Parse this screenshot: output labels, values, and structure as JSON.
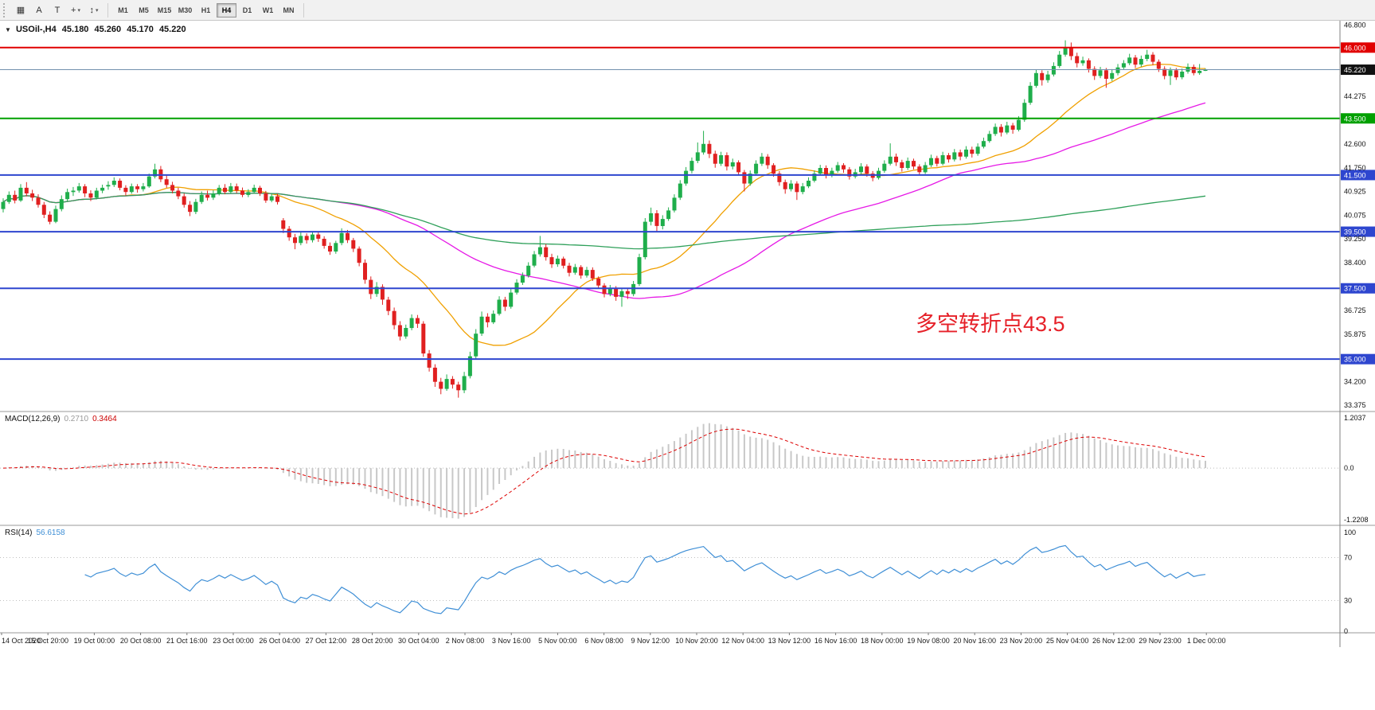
{
  "toolbar": {
    "caret_glyph": "▾",
    "left_icons": [
      {
        "name": "charts-icon",
        "glyph": "▦"
      },
      {
        "name": "annotate-a-icon",
        "glyph": "A"
      },
      {
        "name": "text-tool-icon",
        "glyph": "T"
      },
      {
        "name": "crosshair-tool-icon",
        "glyph": "+"
      },
      {
        "name": "indicators-icon",
        "glyph": "↕"
      }
    ],
    "timeframes": [
      "M1",
      "M5",
      "M15",
      "M30",
      "H1",
      "H4",
      "D1",
      "W1",
      "MN"
    ],
    "active_timeframe": "H4"
  },
  "header": {
    "arrow_glyph": "▼",
    "symbol_period": "USOil-,H4",
    "open": "45.180",
    "high": "45.260",
    "low": "45.170",
    "close": "45.220"
  },
  "panels": {
    "macd": {
      "label": "MACD(12,26,9)",
      "value_main": "0.2710",
      "value_signal": "0.3464",
      "axis": [
        "1.2037",
        "0.0",
        "-1.2208"
      ]
    },
    "rsi": {
      "label": "RSI(14)",
      "value": "56.6158",
      "levels": [
        100,
        70,
        30,
        0
      ],
      "guide_levels": [
        70,
        30
      ]
    }
  },
  "colors": {
    "background": "#ffffff",
    "candle_up": "#1fae4b",
    "candle_down": "#e02020",
    "macd_hist": "#c8c8c8",
    "macd_signal": "#dd0000",
    "rsi_line": "#3f8fd6",
    "pane_border": "#9a9a9a",
    "axis_text": "#111111"
  },
  "chart_data": {
    "type": "candlestick",
    "title": "USOil-,H4",
    "symbol": "USOil-",
    "timeframe": "H4",
    "annotation": {
      "text": "多空转折点43.5",
      "color": "#e62129"
    },
    "y_axis": {
      "range": [
        33.15,
        46.95
      ],
      "ticks": [
        "46.800",
        "44.275",
        "42.600",
        "41.750",
        "40.925",
        "40.075",
        "39.250",
        "38.400",
        "36.725",
        "35.875",
        "34.200",
        "33.375"
      ]
    },
    "x_axis": {
      "labels": [
        "14 Oct 2020",
        "15 Oct 20:00",
        "19 Oct 00:00",
        "20 Oct 08:00",
        "21 Oct 16:00",
        "23 Oct 00:00",
        "26 Oct 04:00",
        "27 Oct 12:00",
        "28 Oct 20:00",
        "30 Oct 04:00",
        "2 Nov 08:00",
        "3 Nov 16:00",
        "5 Nov 00:00",
        "6 Nov 08:00",
        "9 Nov 12:00",
        "10 Nov 20:00",
        "12 Nov 04:00",
        "13 Nov 12:00",
        "16 Nov 16:00",
        "18 Nov 00:00",
        "19 Nov 08:00",
        "20 Nov 16:00",
        "23 Nov 20:00",
        "25 Nov 04:00",
        "26 Nov 12:00",
        "29 Nov 23:00",
        "1 Dec 00:00"
      ]
    },
    "h_lines": [
      {
        "label": "46.000",
        "price": 46.0,
        "color": "#e10000",
        "width": 2
      },
      {
        "label": "45.220",
        "price": 45.22,
        "color": "#7391ad",
        "badge_color": "#111111",
        "width": 1,
        "role": "current-price"
      },
      {
        "label": "43.500",
        "price": 43.5,
        "color": "#00a000",
        "width": 2
      },
      {
        "label": "41.500",
        "price": 41.5,
        "color": "#2e46cf",
        "width": 2
      },
      {
        "label": "39.500",
        "price": 39.5,
        "color": "#2e46cf",
        "width": 2
      },
      {
        "label": "37.500",
        "price": 37.5,
        "color": "#2e46cf",
        "width": 2
      },
      {
        "label": "35.000",
        "price": 35.0,
        "color": "#2e46cf",
        "width": 2
      }
    ],
    "moving_averages": [
      {
        "name": "ma-fast",
        "period": 20,
        "color": "#f0a000"
      },
      {
        "name": "ma-mid",
        "period": 55,
        "color": "#e619e6"
      },
      {
        "name": "ma-slow",
        "period": 160,
        "color": "#2fa05a"
      }
    ],
    "candles": [
      [
        40.3,
        40.68,
        40.18,
        40.55
      ],
      [
        40.55,
        40.92,
        40.48,
        40.8
      ],
      [
        40.8,
        40.95,
        40.5,
        40.6
      ],
      [
        40.6,
        41.18,
        40.55,
        41.05
      ],
      [
        41.05,
        41.25,
        40.75,
        40.85
      ],
      [
        40.85,
        40.98,
        40.58,
        40.7
      ],
      [
        40.7,
        40.82,
        40.35,
        40.45
      ],
      [
        40.45,
        40.55,
        39.98,
        40.1
      ],
      [
        40.1,
        40.22,
        39.76,
        39.85
      ],
      [
        39.85,
        40.42,
        39.8,
        40.3
      ],
      [
        40.3,
        40.78,
        40.22,
        40.65
      ],
      [
        40.65,
        41.02,
        40.58,
        40.9
      ],
      [
        40.9,
        41.08,
        40.76,
        40.95
      ],
      [
        40.95,
        41.22,
        40.88,
        41.1
      ],
      [
        41.1,
        41.18,
        40.72,
        40.85
      ],
      [
        40.85,
        40.96,
        40.58,
        40.7
      ],
      [
        40.7,
        41.05,
        40.64,
        40.95
      ],
      [
        40.95,
        41.16,
        40.86,
        41.05
      ],
      [
        41.1,
        41.28,
        40.98,
        41.15
      ],
      [
        41.15,
        41.42,
        41.08,
        41.3
      ],
      [
        41.3,
        41.38,
        40.96,
        41.05
      ],
      [
        41.05,
        41.14,
        40.78,
        40.9
      ],
      [
        40.9,
        41.2,
        40.84,
        41.1
      ],
      [
        41.1,
        41.18,
        40.88,
        41.0
      ],
      [
        41.0,
        41.22,
        40.92,
        41.1
      ],
      [
        41.1,
        41.55,
        41.05,
        41.45
      ],
      [
        41.45,
        41.9,
        41.38,
        41.7
      ],
      [
        41.7,
        41.82,
        41.25,
        41.35
      ],
      [
        41.35,
        41.48,
        41.05,
        41.15
      ],
      [
        41.15,
        41.26,
        40.85,
        40.95
      ],
      [
        40.95,
        41.05,
        40.65,
        40.75
      ],
      [
        40.75,
        40.85,
        40.35,
        40.45
      ],
      [
        40.45,
        40.58,
        40.05,
        40.2
      ],
      [
        40.2,
        40.66,
        40.12,
        40.55
      ],
      [
        40.55,
        40.92,
        40.48,
        40.8
      ],
      [
        40.8,
        40.95,
        40.6,
        40.7
      ],
      [
        40.7,
        40.96,
        40.62,
        40.85
      ],
      [
        40.85,
        41.15,
        40.78,
        41.05
      ],
      [
        41.05,
        41.18,
        40.82,
        40.9
      ],
      [
        40.9,
        41.22,
        40.85,
        41.1
      ],
      [
        41.1,
        41.2,
        40.86,
        40.95
      ],
      [
        40.95,
        41.06,
        40.72,
        40.8
      ],
      [
        40.8,
        41.0,
        40.72,
        40.9
      ],
      [
        40.9,
        41.16,
        40.84,
        41.05
      ],
      [
        41.05,
        41.12,
        40.76,
        40.85
      ],
      [
        40.85,
        40.94,
        40.52,
        40.6
      ],
      [
        40.6,
        40.86,
        40.54,
        40.75
      ],
      [
        40.75,
        40.84,
        40.46,
        40.55
      ],
      [
        39.9,
        39.98,
        39.45,
        39.6
      ],
      [
        39.6,
        39.7,
        39.18,
        39.3
      ],
      [
        39.3,
        39.42,
        38.88,
        39.1
      ],
      [
        39.1,
        39.48,
        39.02,
        39.35
      ],
      [
        39.35,
        39.44,
        39.08,
        39.2
      ],
      [
        39.2,
        39.52,
        39.12,
        39.4
      ],
      [
        39.4,
        39.5,
        39.14,
        39.25
      ],
      [
        39.25,
        39.34,
        38.9,
        39.0
      ],
      [
        39.0,
        39.12,
        38.68,
        38.8
      ],
      [
        38.8,
        39.18,
        38.72,
        39.1
      ],
      [
        39.1,
        39.62,
        39.02,
        39.45
      ],
      [
        39.45,
        39.56,
        39.1,
        39.2
      ],
      [
        39.2,
        39.28,
        38.78,
        38.9
      ],
      [
        38.9,
        38.98,
        38.28,
        38.4
      ],
      [
        38.4,
        38.52,
        37.66,
        37.8
      ],
      [
        37.8,
        37.92,
        37.12,
        37.3
      ],
      [
        37.3,
        37.72,
        37.2,
        37.55
      ],
      [
        37.55,
        37.64,
        36.92,
        37.1
      ],
      [
        37.1,
        37.2,
        36.55,
        36.7
      ],
      [
        36.7,
        36.82,
        36.05,
        36.2
      ],
      [
        36.2,
        36.34,
        35.66,
        35.8
      ],
      [
        35.8,
        36.22,
        35.72,
        36.1
      ],
      [
        36.1,
        36.58,
        36.02,
        36.45
      ],
      [
        36.45,
        36.56,
        36.1,
        36.25
      ],
      [
        36.25,
        36.34,
        35.08,
        35.2
      ],
      [
        35.2,
        35.32,
        34.56,
        34.7
      ],
      [
        34.7,
        34.82,
        34.02,
        34.2
      ],
      [
        34.2,
        34.34,
        33.76,
        33.95
      ],
      [
        33.95,
        34.46,
        33.88,
        34.3
      ],
      [
        34.3,
        34.4,
        33.96,
        34.1
      ],
      [
        34.1,
        34.2,
        33.64,
        33.9
      ],
      [
        33.9,
        34.55,
        33.8,
        34.4
      ],
      [
        34.4,
        35.26,
        34.32,
        35.1
      ],
      [
        35.1,
        36.06,
        35.02,
        35.9
      ],
      [
        35.9,
        36.68,
        35.82,
        36.5
      ],
      [
        36.5,
        36.62,
        36.12,
        36.3
      ],
      [
        36.3,
        36.72,
        36.24,
        36.6
      ],
      [
        36.6,
        37.22,
        36.54,
        37.1
      ],
      [
        37.1,
        37.2,
        36.7,
        36.85
      ],
      [
        36.85,
        37.48,
        36.78,
        37.35
      ],
      [
        37.35,
        37.82,
        37.28,
        37.7
      ],
      [
        37.7,
        38.06,
        37.62,
        37.95
      ],
      [
        37.95,
        38.42,
        37.88,
        38.3
      ],
      [
        38.3,
        38.82,
        38.24,
        38.7
      ],
      [
        38.7,
        39.35,
        38.62,
        38.95
      ],
      [
        38.95,
        39.06,
        38.48,
        38.6
      ],
      [
        38.6,
        38.72,
        38.22,
        38.35
      ],
      [
        38.35,
        38.66,
        38.26,
        38.55
      ],
      [
        38.55,
        38.62,
        38.2,
        38.3
      ],
      [
        38.3,
        38.4,
        37.92,
        38.05
      ],
      [
        38.05,
        38.36,
        37.98,
        38.25
      ],
      [
        38.25,
        38.32,
        37.84,
        37.95
      ],
      [
        37.95,
        38.26,
        37.88,
        38.15
      ],
      [
        38.15,
        38.24,
        37.76,
        37.85
      ],
      [
        37.85,
        37.92,
        37.48,
        37.6
      ],
      [
        37.6,
        37.68,
        37.18,
        37.3
      ],
      [
        37.3,
        37.62,
        37.22,
        37.5
      ],
      [
        37.5,
        37.58,
        37.06,
        37.2
      ],
      [
        37.2,
        37.52,
        36.85,
        37.4
      ],
      [
        37.4,
        37.5,
        37.12,
        37.3
      ],
      [
        37.3,
        37.76,
        37.22,
        37.65
      ],
      [
        37.65,
        38.72,
        37.58,
        38.6
      ],
      [
        38.6,
        39.98,
        38.52,
        39.85
      ],
      [
        39.85,
        40.35,
        39.72,
        40.15
      ],
      [
        40.15,
        40.26,
        39.52,
        39.7
      ],
      [
        39.7,
        40.08,
        39.58,
        39.95
      ],
      [
        39.95,
        40.36,
        39.88,
        40.25
      ],
      [
        40.25,
        40.82,
        40.18,
        40.7
      ],
      [
        40.7,
        41.32,
        40.62,
        41.2
      ],
      [
        41.2,
        41.78,
        41.12,
        41.65
      ],
      [
        41.65,
        42.12,
        41.56,
        42.0
      ],
      [
        42.0,
        42.65,
        41.92,
        42.3
      ],
      [
        42.3,
        43.06,
        42.22,
        42.6
      ],
      [
        42.6,
        42.72,
        42.1,
        42.25
      ],
      [
        42.25,
        42.36,
        41.76,
        41.9
      ],
      [
        41.9,
        42.32,
        41.82,
        42.2
      ],
      [
        42.2,
        42.3,
        41.66,
        41.8
      ],
      [
        41.8,
        42.08,
        41.7,
        41.95
      ],
      [
        41.95,
        42.02,
        41.48,
        41.6
      ],
      [
        41.6,
        41.68,
        40.92,
        41.2
      ],
      [
        41.2,
        41.66,
        41.12,
        41.55
      ],
      [
        41.55,
        42.02,
        41.48,
        41.9
      ],
      [
        41.9,
        42.28,
        41.82,
        42.15
      ],
      [
        42.15,
        42.24,
        41.72,
        41.85
      ],
      [
        41.85,
        41.92,
        41.44,
        41.55
      ],
      [
        41.55,
        41.64,
        41.12,
        41.25
      ],
      [
        41.25,
        41.34,
        40.84,
        41.0
      ],
      [
        41.0,
        41.32,
        40.92,
        41.2
      ],
      [
        41.2,
        41.28,
        40.62,
        40.9
      ],
      [
        40.9,
        41.22,
        40.82,
        41.1
      ],
      [
        41.1,
        41.42,
        41.04,
        41.3
      ],
      [
        41.3,
        41.66,
        41.24,
        41.55
      ],
      [
        41.55,
        41.86,
        41.48,
        41.75
      ],
      [
        41.75,
        41.84,
        41.38,
        41.5
      ],
      [
        41.5,
        41.76,
        41.42,
        41.65
      ],
      [
        41.65,
        41.96,
        41.58,
        41.85
      ],
      [
        41.85,
        41.92,
        41.58,
        41.7
      ],
      [
        41.7,
        41.78,
        41.34,
        41.45
      ],
      [
        41.45,
        41.72,
        41.38,
        41.6
      ],
      [
        41.6,
        41.92,
        41.52,
        41.8
      ],
      [
        41.8,
        41.88,
        41.44,
        41.55
      ],
      [
        41.55,
        41.64,
        41.28,
        41.4
      ],
      [
        41.4,
        41.76,
        41.34,
        41.65
      ],
      [
        41.65,
        42.02,
        41.58,
        41.9
      ],
      [
        41.9,
        42.62,
        41.84,
        42.15
      ],
      [
        42.15,
        42.26,
        41.82,
        41.95
      ],
      [
        41.95,
        42.04,
        41.62,
        41.75
      ],
      [
        41.75,
        42.12,
        41.68,
        42.0
      ],
      [
        42.0,
        42.08,
        41.7,
        41.8
      ],
      [
        41.8,
        41.88,
        41.48,
        41.6
      ],
      [
        41.6,
        41.96,
        41.54,
        41.85
      ],
      [
        41.85,
        42.22,
        41.78,
        42.1
      ],
      [
        42.1,
        42.18,
        41.8,
        41.9
      ],
      [
        41.9,
        42.32,
        41.84,
        42.2
      ],
      [
        42.2,
        42.28,
        41.94,
        42.05
      ],
      [
        42.05,
        42.42,
        41.98,
        42.3
      ],
      [
        42.3,
        42.4,
        42.02,
        42.15
      ],
      [
        42.15,
        42.52,
        42.08,
        42.4
      ],
      [
        42.4,
        42.5,
        42.12,
        42.25
      ],
      [
        42.25,
        42.62,
        42.18,
        42.5
      ],
      [
        42.5,
        42.82,
        42.44,
        42.7
      ],
      [
        42.7,
        43.06,
        42.64,
        42.95
      ],
      [
        42.95,
        43.32,
        42.88,
        43.2
      ],
      [
        43.2,
        43.3,
        42.86,
        43.0
      ],
      [
        43.0,
        43.38,
        42.94,
        43.25
      ],
      [
        43.25,
        43.34,
        42.96,
        43.1
      ],
      [
        43.1,
        43.58,
        43.04,
        43.45
      ],
      [
        43.45,
        44.18,
        43.38,
        44.05
      ],
      [
        44.05,
        44.78,
        43.98,
        44.65
      ],
      [
        44.65,
        45.22,
        44.58,
        45.1
      ],
      [
        45.1,
        45.2,
        44.66,
        44.85
      ],
      [
        44.85,
        45.18,
        44.76,
        45.05
      ],
      [
        45.05,
        45.48,
        44.98,
        45.35
      ],
      [
        45.35,
        45.88,
        45.28,
        45.75
      ],
      [
        45.75,
        46.26,
        45.68,
        46.0
      ],
      [
        46.0,
        46.18,
        45.56,
        45.7
      ],
      [
        45.7,
        45.82,
        45.3,
        45.45
      ],
      [
        45.45,
        45.68,
        45.36,
        45.55
      ],
      [
        45.55,
        45.62,
        45.12,
        45.25
      ],
      [
        45.25,
        45.34,
        44.86,
        45.0
      ],
      [
        45.0,
        45.32,
        44.92,
        45.2
      ],
      [
        45.2,
        45.28,
        44.58,
        44.9
      ],
      [
        44.9,
        45.24,
        44.82,
        45.1
      ],
      [
        45.1,
        45.42,
        45.02,
        45.3
      ],
      [
        45.3,
        45.56,
        45.22,
        45.45
      ],
      [
        45.45,
        45.78,
        45.38,
        45.65
      ],
      [
        45.65,
        45.74,
        45.28,
        45.4
      ],
      [
        45.4,
        45.72,
        45.32,
        45.6
      ],
      [
        45.6,
        45.92,
        45.52,
        45.75
      ],
      [
        45.75,
        45.84,
        45.38,
        45.5
      ],
      [
        45.5,
        45.58,
        45.14,
        45.25
      ],
      [
        45.25,
        45.34,
        44.88,
        45.0
      ],
      [
        45.0,
        45.3,
        44.68,
        45.2
      ],
      [
        45.2,
        45.28,
        44.86,
        44.95
      ],
      [
        44.95,
        45.26,
        44.88,
        45.15
      ],
      [
        45.15,
        45.44,
        45.08,
        45.32
      ],
      [
        45.32,
        45.4,
        45.02,
        45.1
      ],
      [
        45.1,
        45.42,
        45.04,
        45.18
      ],
      [
        45.18,
        45.26,
        45.17,
        45.22
      ]
    ]
  }
}
